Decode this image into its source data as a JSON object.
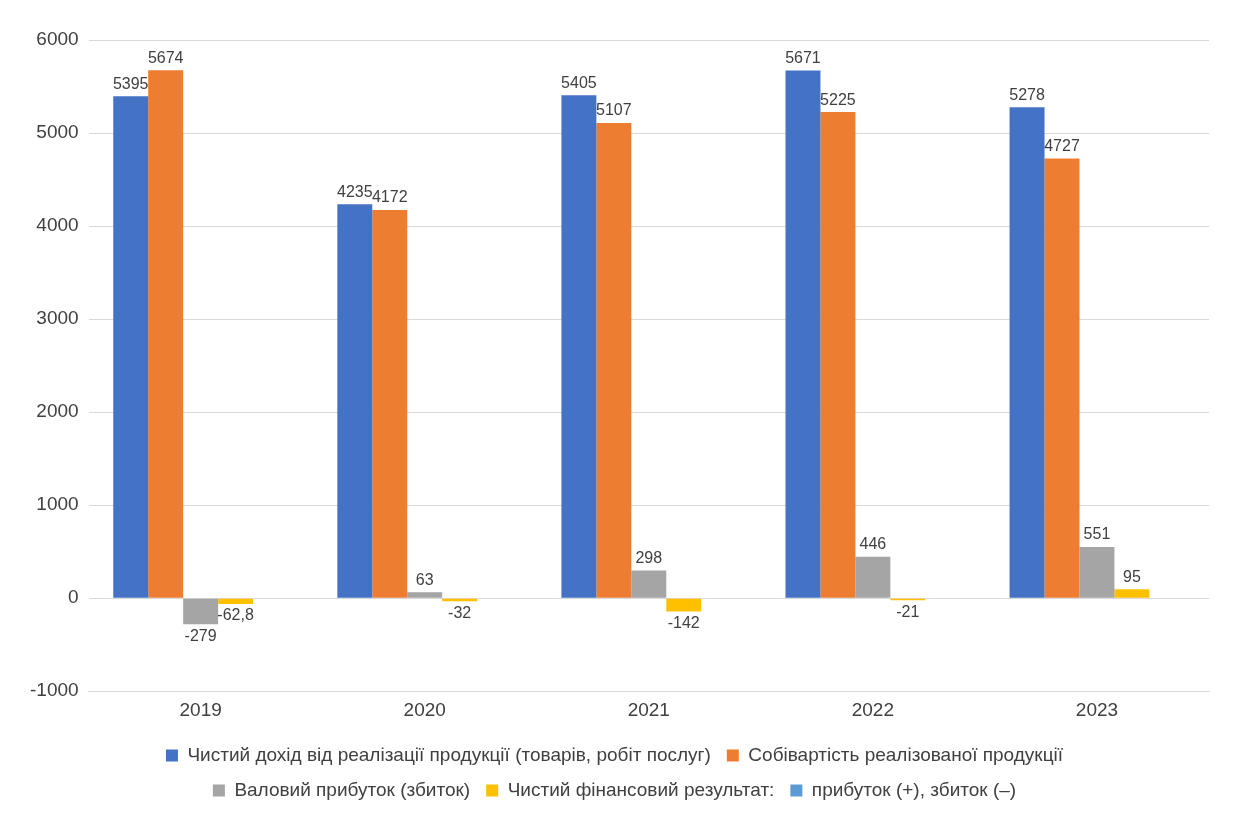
{
  "chart_data": {
    "type": "bar",
    "categories": [
      "2019",
      "2020",
      "2021",
      "2022",
      "2023"
    ],
    "series": [
      {
        "name": "Чистий дохід від реалізації продукції (товарів, робіт послуг)",
        "color": "#4472c4",
        "values": [
          5395,
          4235,
          5405,
          5671,
          5278
        ],
        "value_labels": [
          "5395",
          "4235",
          "5405",
          "5671",
          "5278"
        ]
      },
      {
        "name": "Собівартість реалізованої продукції",
        "color": "#ed7d31",
        "values": [
          5674,
          4172,
          5107,
          5225,
          4727
        ],
        "value_labels": [
          "5674",
          "4172",
          "5107",
          "5225",
          "4727"
        ]
      },
      {
        "name": "Валовий прибуток (збиток)",
        "color": "#a5a5a5",
        "values": [
          -279,
          63,
          298,
          446,
          551
        ],
        "value_labels": [
          "-279",
          "63",
          "298",
          "446",
          "551"
        ]
      },
      {
        "name": "Чистий фінансовий результат:",
        "color": "#ffc000",
        "values": [
          -62.8,
          -32,
          -142,
          -21,
          95
        ],
        "value_labels": [
          "-62,8",
          "-32",
          "-142",
          "-21",
          "95"
        ]
      },
      {
        "name": "прибуток (+), збиток (–)",
        "color": "#5b9bd5",
        "values": [
          null,
          null,
          null,
          null,
          null
        ]
      }
    ],
    "ylim": [
      -1000,
      6000
    ],
    "yticks": [
      -1000,
      0,
      1000,
      2000,
      3000,
      4000,
      5000,
      6000
    ],
    "grid": "y",
    "legend": "bottom"
  }
}
